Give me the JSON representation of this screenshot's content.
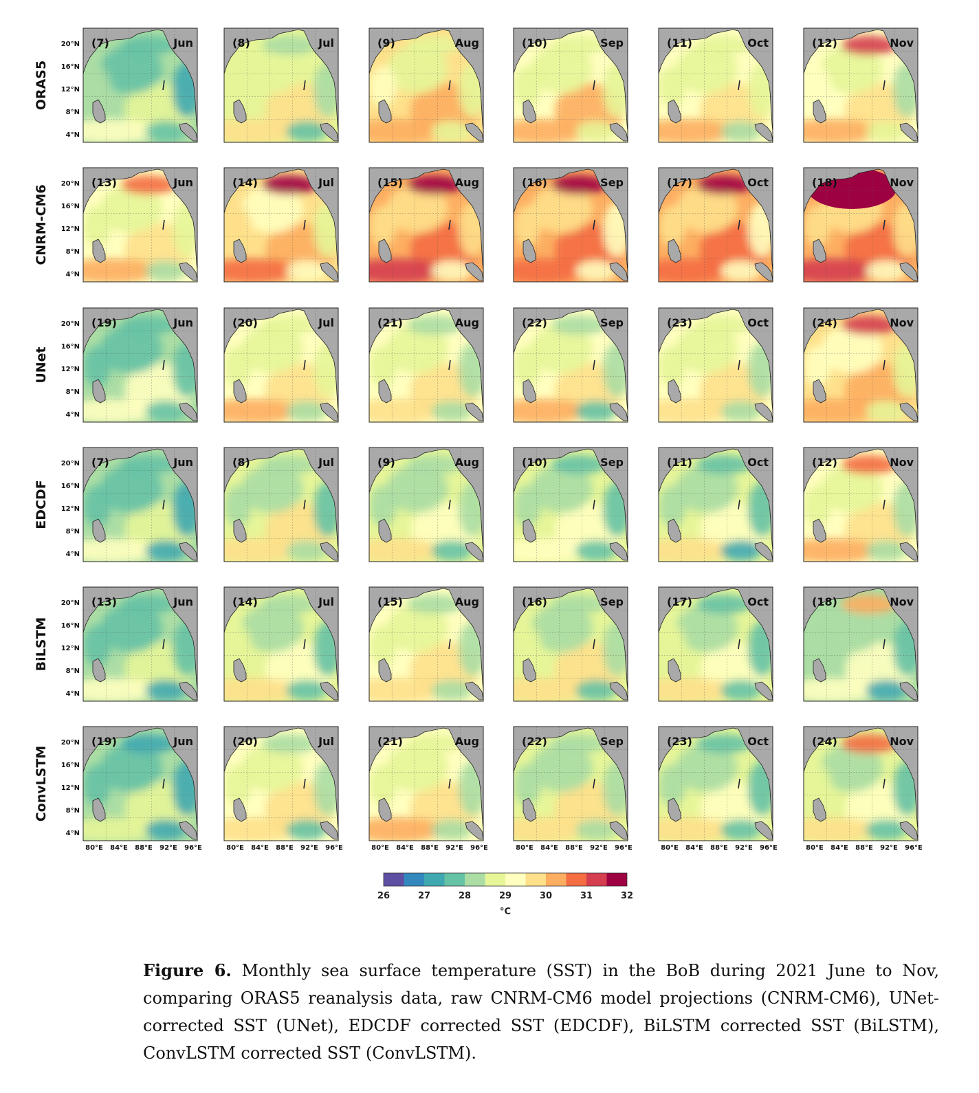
{
  "rows": [
    {
      "label": "ORAS5",
      "ids": [
        "(7)",
        "(8)",
        "(9)",
        "(10)",
        "(11)",
        "(12)"
      ],
      "base": 0.0,
      "lvl": [
        -0.6,
        -0.1,
        0.5,
        0.4,
        0.3,
        0.4
      ]
    },
    {
      "label": "CNRM-CM6",
      "ids": [
        "(13)",
        "(14)",
        "(15)",
        "(16)",
        "(17)",
        "(18)"
      ],
      "base": 1.2,
      "lvl": [
        0.2,
        0.9,
        1.3,
        1.1,
        1.2,
        1.2
      ]
    },
    {
      "label": "UNet",
      "ids": [
        "(19)",
        "(20)",
        "(21)",
        "(22)",
        "(23)",
        "(24)"
      ],
      "base": 0.2,
      "lvl": [
        -0.6,
        0.2,
        0.2,
        0.1,
        0.1,
        0.6
      ]
    },
    {
      "label": "EDCDF",
      "ids": [
        "(7)",
        "(8)",
        "(9)",
        "(10)",
        "(11)",
        "(12)"
      ],
      "base": -0.3,
      "lvl": [
        -0.8,
        -0.2,
        -0.2,
        -0.4,
        -0.4,
        0.2
      ]
    },
    {
      "label": "BiLSTM",
      "ids": [
        "(13)",
        "(14)",
        "(15)",
        "(16)",
        "(17)",
        "(18)"
      ],
      "base": -0.3,
      "lvl": [
        -0.7,
        -0.1,
        0.0,
        -0.1,
        -0.2,
        -0.6
      ]
    },
    {
      "label": "ConvLSTM",
      "ids": [
        "(19)",
        "(20)",
        "(21)",
        "(22)",
        "(23)",
        "(24)"
      ],
      "base": -0.3,
      "lvl": [
        -0.8,
        0.0,
        0.2,
        -0.1,
        -0.4,
        -0.2
      ]
    }
  ],
  "months": [
    "Jun",
    "Jul",
    "Aug",
    "Sep",
    "Oct",
    "Nov"
  ],
  "lat_ticks": [
    "20°N",
    "16°N",
    "12°N",
    "8°N",
    "4°N"
  ],
  "lon_ticks": [
    "80°E",
    "84°E",
    "88°E",
    "92°E",
    "96°E"
  ],
  "colorbar": {
    "min": 26,
    "max": 32,
    "ticks": [
      "26",
      "27",
      "28",
      "29",
      "30",
      "31",
      "32"
    ],
    "unit": "°C",
    "colors": [
      "#5e4fa2",
      "#3288bd",
      "#40a8b0",
      "#66c2a5",
      "#abdda4",
      "#e6f598",
      "#ffffbf",
      "#fee08b",
      "#fdae61",
      "#f46d43",
      "#d53e4f",
      "#9e0142"
    ]
  },
  "land_color": "#a9a9a9",
  "caption": {
    "label": "Figure 6.",
    "text": " Monthly sea surface temperature (SST) in the BoB during 2021 June to Nov, comparing ORAS5 reanalysis data, raw CNRM-CM6 model projections (CNRM-CM6), UNet-corrected SST (UNet), EDCDF corrected SST (EDCDF), BiLSTM corrected SST (BiLSTM), ConvLSTM corrected SST (ConvLSTM)."
  }
}
